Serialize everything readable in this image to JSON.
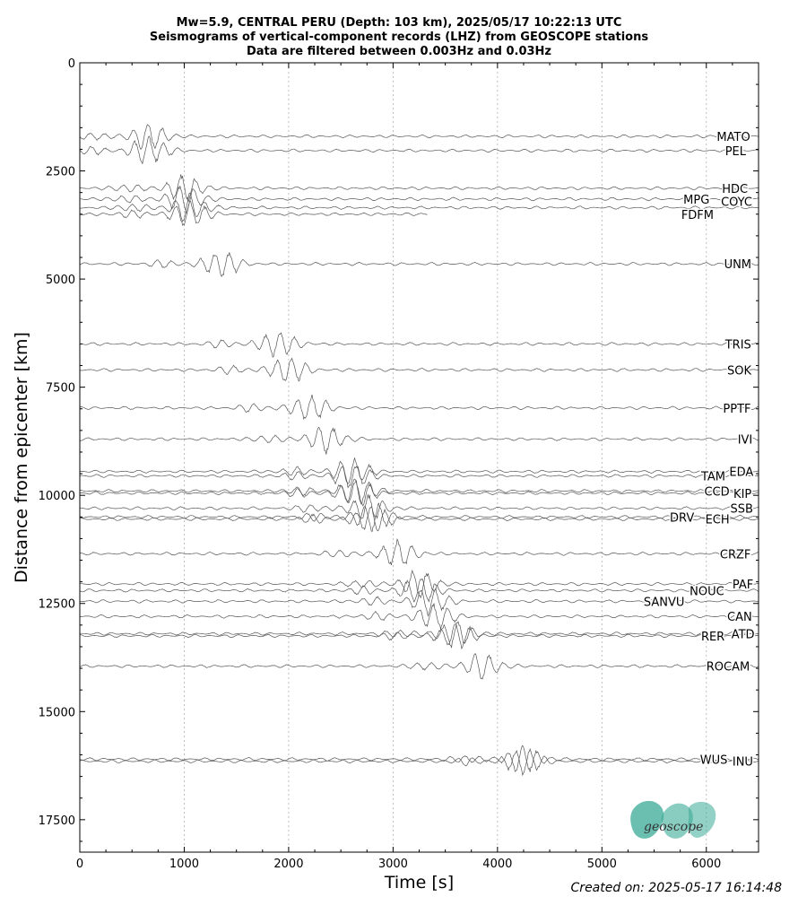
{
  "header": {
    "line1": "Mw=5.9, CENTRAL PERU (Depth: 103 km), 2025/05/17 10:22:13 UTC",
    "line2": "Seismograms of vertical-component records (LHZ) from GEOSCOPE stations",
    "line3": "Data are filtered between 0.003Hz and 0.03Hz"
  },
  "footer": {
    "created": "Created on: 2025-05-17 16:14:48"
  },
  "logo": {
    "text": "geoscope",
    "color": "#3aaa96"
  },
  "chart_data": {
    "type": "line",
    "xlabel": "Time [s]",
    "ylabel": "Distance from epicenter [km]",
    "xlim": [
      0,
      6500
    ],
    "ylim": [
      0,
      18250
    ],
    "y_inverted": true,
    "xticks": [
      0,
      1000,
      2000,
      3000,
      4000,
      5000,
      6000
    ],
    "yticks": [
      0,
      2500,
      5000,
      7500,
      10000,
      12500,
      15000,
      17500
    ],
    "grid": "x-dotted",
    "trace_color": "#555555",
    "stations": [
      {
        "name": "MATO",
        "dist": 1700,
        "arrival": 560,
        "label_x": 6100,
        "label_dy": 0,
        "end": 6500
      },
      {
        "name": "PEL",
        "dist": 2030,
        "arrival": 560,
        "label_x": 6180,
        "label_dy": 0,
        "end": 6500
      },
      {
        "name": "HDC",
        "dist": 2900,
        "arrival": 900,
        "label_x": 6150,
        "label_dy": 0,
        "end": 6500
      },
      {
        "name": "MPG",
        "dist": 3150,
        "arrival": 900,
        "label_x": 5780,
        "label_dy": 0,
        "end": 6500
      },
      {
        "name": "COYC",
        "dist": 3350,
        "arrival": 950,
        "label_x": 6140,
        "label_dy": -150,
        "end": 6500
      },
      {
        "name": "FDFM",
        "dist": 3500,
        "arrival": 950,
        "label_x": 5760,
        "label_dy": 0,
        "end": 3330
      },
      {
        "name": "UNM",
        "dist": 4650,
        "arrival": 1250,
        "label_x": 6170,
        "label_dy": 0,
        "end": 6500
      },
      {
        "name": "TRIS",
        "dist": 6500,
        "arrival": 1800,
        "label_x": 6180,
        "label_dy": 0,
        "end": 6500
      },
      {
        "name": "SOK",
        "dist": 7100,
        "arrival": 1900,
        "label_x": 6200,
        "label_dy": 0,
        "end": 6500
      },
      {
        "name": "PPTF",
        "dist": 7980,
        "arrival": 2100,
        "label_x": 6160,
        "label_dy": 0,
        "end": 6500
      },
      {
        "name": "IVI",
        "dist": 8700,
        "arrival": 2250,
        "label_x": 6300,
        "label_dy": 0,
        "end": 6500
      },
      {
        "name": "EDA",
        "dist": 9450,
        "arrival": 2500,
        "label_x": 6220,
        "label_dy": 0,
        "end": 6500
      },
      {
        "name": "TAM",
        "dist": 9550,
        "arrival": 2500,
        "label_x": 5950,
        "label_dy": 0,
        "end": 6500
      },
      {
        "name": "CCD",
        "dist": 9900,
        "arrival": 2550,
        "label_x": 5980,
        "label_dy": 0,
        "end": 6500
      },
      {
        "name": "KIP",
        "dist": 9950,
        "arrival": 2550,
        "label_x": 6260,
        "label_dy": 0,
        "end": 6500
      },
      {
        "name": "SSB",
        "dist": 10300,
        "arrival": 2650,
        "label_x": 6230,
        "label_dy": 0,
        "end": 6500
      },
      {
        "name": "DRV",
        "dist": 10500,
        "arrival": 2700,
        "label_x": 5650,
        "label_dy": 0,
        "end": 6500
      },
      {
        "name": "ECH",
        "dist": 10550,
        "arrival": 2700,
        "label_x": 5990,
        "label_dy": 0,
        "end": 6500
      },
      {
        "name": "CRZF",
        "dist": 11350,
        "arrival": 2950,
        "label_x": 6130,
        "label_dy": 0,
        "end": 6500
      },
      {
        "name": "PAF",
        "dist": 12050,
        "arrival": 3150,
        "label_x": 6250,
        "label_dy": 0,
        "end": 6500
      },
      {
        "name": "NOUC",
        "dist": 12200,
        "arrival": 3150,
        "label_x": 5840,
        "label_dy": 0,
        "end": 6500
      },
      {
        "name": "SANVU",
        "dist": 12450,
        "arrival": 3250,
        "label_x": 5400,
        "label_dy": 0,
        "end": 6500
      },
      {
        "name": "CAN",
        "dist": 12800,
        "arrival": 3300,
        "label_x": 6200,
        "label_dy": 0,
        "end": 6500
      },
      {
        "name": "RER",
        "dist": 13250,
        "arrival": 3500,
        "label_x": 5950,
        "label_dy": 0,
        "end": 6500
      },
      {
        "name": "ATD",
        "dist": 13200,
        "arrival": 3500,
        "label_x": 6240,
        "label_dy": 0,
        "end": 6500
      },
      {
        "name": "ROCAM",
        "dist": 13950,
        "arrival": 3750,
        "label_x": 6000,
        "label_dy": 0,
        "end": 6500
      },
      {
        "name": "WUS",
        "dist": 16100,
        "arrival": 4150,
        "label_x": 5940,
        "label_dy": 0,
        "end": 6500
      },
      {
        "name": "INU",
        "dist": 16150,
        "arrival": 4150,
        "label_x": 6250,
        "label_dy": 0,
        "end": 6500
      }
    ]
  }
}
